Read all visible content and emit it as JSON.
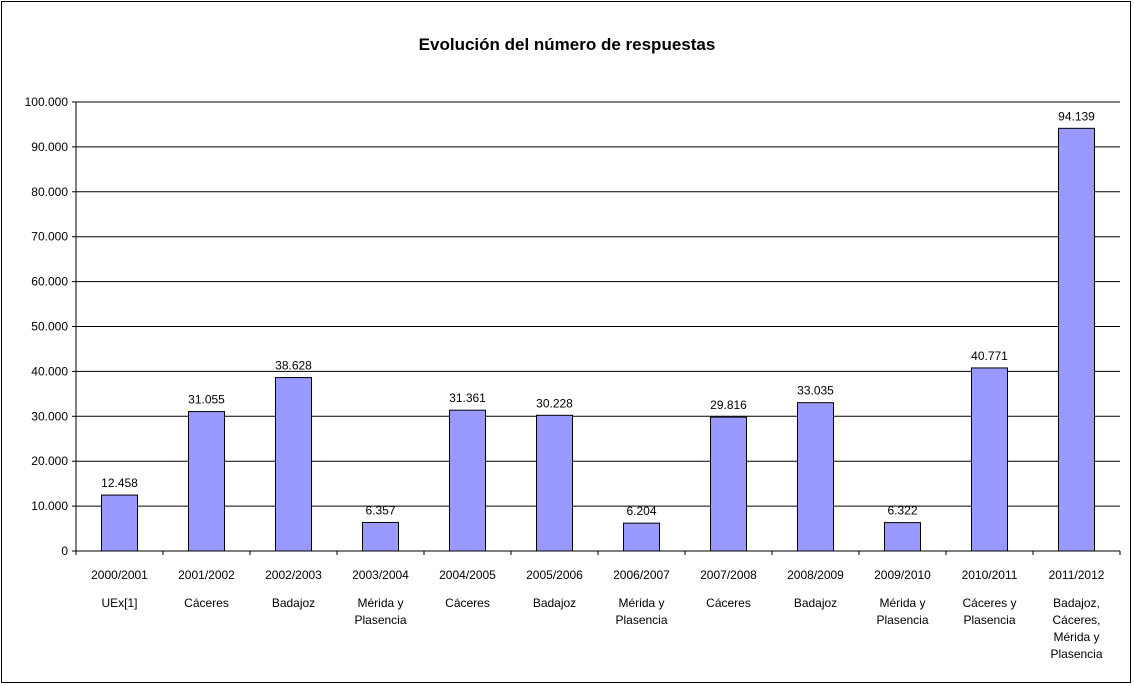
{
  "chart_data": {
    "type": "bar",
    "title": "Evolución del número de respuestas",
    "xlabel": "",
    "ylabel": "",
    "ylim": [
      0,
      100000
    ],
    "y_ticks": [
      "0",
      "10.000",
      "20.000",
      "30.000",
      "40.000",
      "50.000",
      "60.000",
      "70.000",
      "80.000",
      "90.000",
      "100.000"
    ],
    "grid": true,
    "legend": "none",
    "bar_color": "#9999ff",
    "categories": [
      {
        "year": "2000/2001",
        "place": [
          "UEx[1]"
        ]
      },
      {
        "year": "2001/2002",
        "place": [
          "Cáceres"
        ]
      },
      {
        "year": "2002/2003",
        "place": [
          "Badajoz"
        ]
      },
      {
        "year": "2003/2004",
        "place": [
          "Mérida y",
          "Plasencia"
        ]
      },
      {
        "year": "2004/2005",
        "place": [
          "Cáceres"
        ]
      },
      {
        "year": "2005/2006",
        "place": [
          "Badajoz"
        ]
      },
      {
        "year": "2006/2007",
        "place": [
          "Mérida y",
          "Plasencia"
        ]
      },
      {
        "year": "2007/2008",
        "place": [
          "Cáceres"
        ]
      },
      {
        "year": "2008/2009",
        "place": [
          "Badajoz"
        ]
      },
      {
        "year": "2009/2010",
        "place": [
          "Mérida y",
          "Plasencia"
        ]
      },
      {
        "year": "2010/2011",
        "place": [
          "Cáceres y",
          "Plasencia"
        ]
      },
      {
        "year": "2011/2012",
        "place": [
          "Badajoz,",
          "Cáceres,",
          "Mérida y",
          "Plasencia"
        ]
      }
    ],
    "values": [
      12458,
      31055,
      38628,
      6357,
      31361,
      30228,
      6204,
      29816,
      33035,
      6322,
      40771,
      94139
    ],
    "data_labels": [
      "12.458",
      "31.055",
      "38.628",
      "6.357",
      "31.361",
      "30.228",
      "6.204",
      "29.816",
      "33.035",
      "6.322",
      "40.771",
      "94.139"
    ]
  }
}
